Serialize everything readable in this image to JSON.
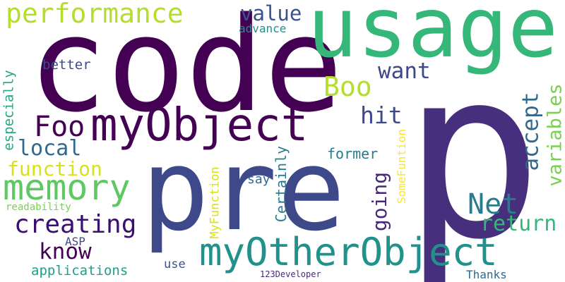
{
  "words": [
    {
      "text": "p",
      "color": "#472f7d",
      "vertical": false
    },
    {
      "text": "code",
      "color": "#440154",
      "vertical": false
    },
    {
      "text": "pre",
      "color": "#3e4989",
      "vertical": false
    },
    {
      "text": "usage",
      "color": "#35b779",
      "vertical": false
    },
    {
      "text": "myObject",
      "color": "#440154",
      "vertical": false
    },
    {
      "text": "myOtherObject",
      "color": "#21918c",
      "vertical": false
    },
    {
      "text": "performance",
      "color": "#b5de2b",
      "vertical": false
    },
    {
      "text": "memory",
      "color": "#5ec962",
      "vertical": false
    },
    {
      "text": "Foo",
      "color": "#440154",
      "vertical": false
    },
    {
      "text": "Boo",
      "color": "#b5de2b",
      "vertical": false
    },
    {
      "text": "Net",
      "color": "#287c8e",
      "vertical": false
    },
    {
      "text": "creating",
      "color": "#3b0f70",
      "vertical": false
    },
    {
      "text": "function",
      "color": "#d8e219",
      "vertical": false
    },
    {
      "text": "value",
      "color": "#3b528b",
      "vertical": false
    },
    {
      "text": "want",
      "color": "#3e4989",
      "vertical": false
    },
    {
      "text": "local",
      "color": "#31688e",
      "vertical": false
    },
    {
      "text": "hit",
      "color": "#3e4989",
      "vertical": false
    },
    {
      "text": "return",
      "color": "#35b779",
      "vertical": false
    },
    {
      "text": "know",
      "color": "#440154",
      "vertical": false
    },
    {
      "text": "accept",
      "color": "#31688e",
      "vertical": true
    },
    {
      "text": "variables",
      "color": "#7ad151",
      "vertical": true
    },
    {
      "text": "going",
      "color": "#482878",
      "vertical": true
    },
    {
      "text": "better",
      "color": "#3e4989",
      "vertical": false
    },
    {
      "text": "advance",
      "color": "#21918c",
      "vertical": false
    },
    {
      "text": "especially",
      "color": "#22a884",
      "vertical": true
    },
    {
      "text": "former",
      "color": "#287c8e",
      "vertical": false
    },
    {
      "text": "say",
      "color": "#31688e",
      "vertical": false
    },
    {
      "text": "Certainly",
      "color": "#287c8e",
      "vertical": true
    },
    {
      "text": "SomeFuntion",
      "color": "#fde725",
      "vertical": true
    },
    {
      "text": "MyFunction",
      "color": "#d8e219",
      "vertical": true
    },
    {
      "text": "readability",
      "color": "#7ad151",
      "vertical": false
    },
    {
      "text": "ASP",
      "color": "#3e4989",
      "vertical": false
    },
    {
      "text": "applications",
      "color": "#1f9e89",
      "vertical": false
    },
    {
      "text": "use",
      "color": "#3b528b",
      "vertical": false
    },
    {
      "text": "123Developer",
      "color": "#482878",
      "vertical": false
    },
    {
      "text": "Thanks",
      "color": "#31688e",
      "vertical": false
    }
  ]
}
